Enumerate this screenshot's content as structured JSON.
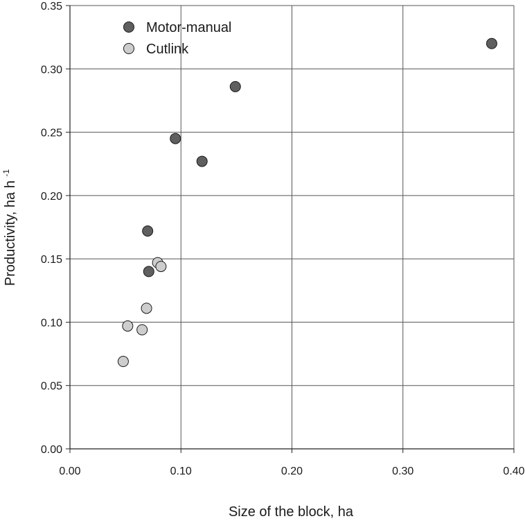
{
  "chart_data": {
    "type": "scatter",
    "xlabel": "Size of the block, ha",
    "ylabel": "Productivity, ha h",
    "ylabel_sup": "-1",
    "xlim": [
      0,
      0.4
    ],
    "ylim": [
      0,
      0.35
    ],
    "x_ticks": [
      0,
      0.1,
      0.2,
      0.3,
      0.4
    ],
    "x_tick_labels": [
      "0.00",
      "0.10",
      "0.20",
      "0.30",
      "0.40"
    ],
    "y_ticks": [
      0,
      0.05,
      0.1,
      0.15,
      0.2,
      0.25,
      0.3,
      0.35
    ],
    "y_tick_labels": [
      "0.00",
      "0.05",
      "0.10",
      "0.15",
      "0.20",
      "0.25",
      "0.30",
      "0.35"
    ],
    "grid": true,
    "legend_position": "top-left",
    "series": [
      {
        "name": "Motor-manual",
        "color": "#5f5f5f",
        "points": [
          {
            "x": 0.07,
            "y": 0.172
          },
          {
            "x": 0.071,
            "y": 0.14
          },
          {
            "x": 0.095,
            "y": 0.245
          },
          {
            "x": 0.119,
            "y": 0.227
          },
          {
            "x": 0.149,
            "y": 0.286
          },
          {
            "x": 0.38,
            "y": 0.32
          }
        ]
      },
      {
        "name": "Cutlink",
        "color": "#cdcdcd",
        "points": [
          {
            "x": 0.048,
            "y": 0.069
          },
          {
            "x": 0.052,
            "y": 0.097
          },
          {
            "x": 0.065,
            "y": 0.094
          },
          {
            "x": 0.069,
            "y": 0.111
          },
          {
            "x": 0.079,
            "y": 0.147
          },
          {
            "x": 0.082,
            "y": 0.144
          }
        ]
      }
    ]
  }
}
